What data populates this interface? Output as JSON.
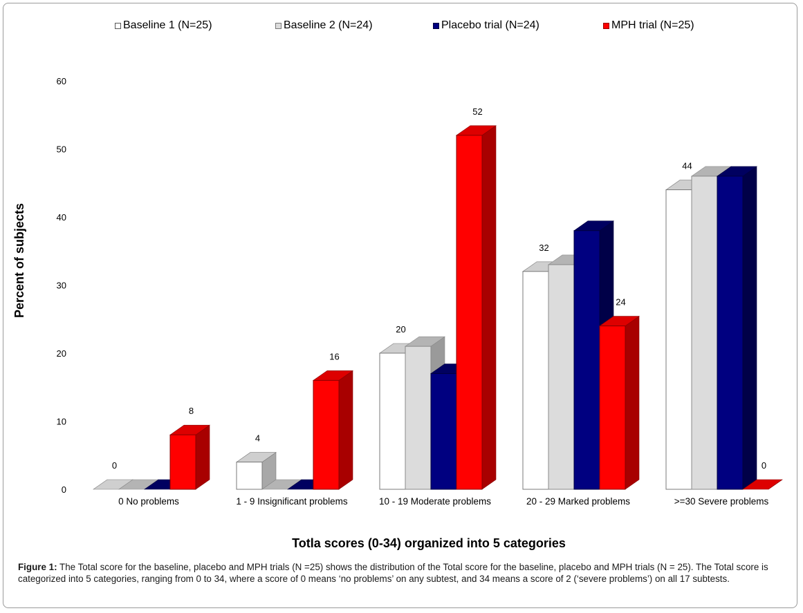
{
  "chart_data": {
    "type": "bar",
    "subtype": "3d-clustered",
    "categories": [
      "0 No problems",
      "1 - 9 Insignificant problems",
      "10 - 19 Moderate problems",
      "20 - 29 Marked problems",
      ">=30 Severe problems"
    ],
    "series": [
      {
        "name": "Baseline 1 (N=25)",
        "values": [
          0,
          4,
          20,
          32,
          44
        ],
        "color": "#ffffff"
      },
      {
        "name": "Baseline 2 (N=24)",
        "values": [
          0,
          0,
          21,
          33,
          46
        ],
        "color": "#dcdcdc"
      },
      {
        "name": "Placebo trial (N=24)",
        "values": [
          0,
          0,
          17,
          38,
          46
        ],
        "color": "#000080"
      },
      {
        "name": "MPH trial (N=25)",
        "values": [
          8,
          16,
          52,
          24,
          0
        ],
        "color": "#ff0000"
      }
    ],
    "data_labels": [
      {
        "category": "0 No problems",
        "text": "0"
      },
      {
        "category": "0 No problems",
        "text": "8"
      },
      {
        "category": "1 - 9 Insignificant problems",
        "text": "4"
      },
      {
        "category": "1 - 9 Insignificant problems",
        "text": "16"
      },
      {
        "category": "10 - 19 Moderate problems",
        "text": "20"
      },
      {
        "category": "10 - 19 Moderate problems",
        "text": "52"
      },
      {
        "category": "20 - 29 Marked problems",
        "text": "32"
      },
      {
        "category": "20 - 29 Marked problems",
        "text": "24"
      },
      {
        "category": ">=30 Severe problems",
        "text": "44"
      },
      {
        "category": ">=30 Severe problems",
        "text": "0"
      }
    ],
    "xlabel": "Totla scores (0-34) organized into 5 categories",
    "ylabel": "Percent of subjects",
    "ylim": [
      0,
      60
    ],
    "yticks": [
      0,
      10,
      20,
      30,
      40,
      50,
      60
    ],
    "grid": false,
    "legend_position": "top"
  },
  "caption": {
    "label": "Figure 1:",
    "text": " The Total score for the baseline, placebo and MPH trials (N =25) shows the distribution of the Total score for the baseline, placebo and MPH trials (N = 25). The Total score is categorized into 5 categories, ranging from 0 to 34, where a score of 0 means ‘no problems’ on any subtest, and 34 means a score of 2 (‘severe problems’) on all 17 subtests."
  }
}
